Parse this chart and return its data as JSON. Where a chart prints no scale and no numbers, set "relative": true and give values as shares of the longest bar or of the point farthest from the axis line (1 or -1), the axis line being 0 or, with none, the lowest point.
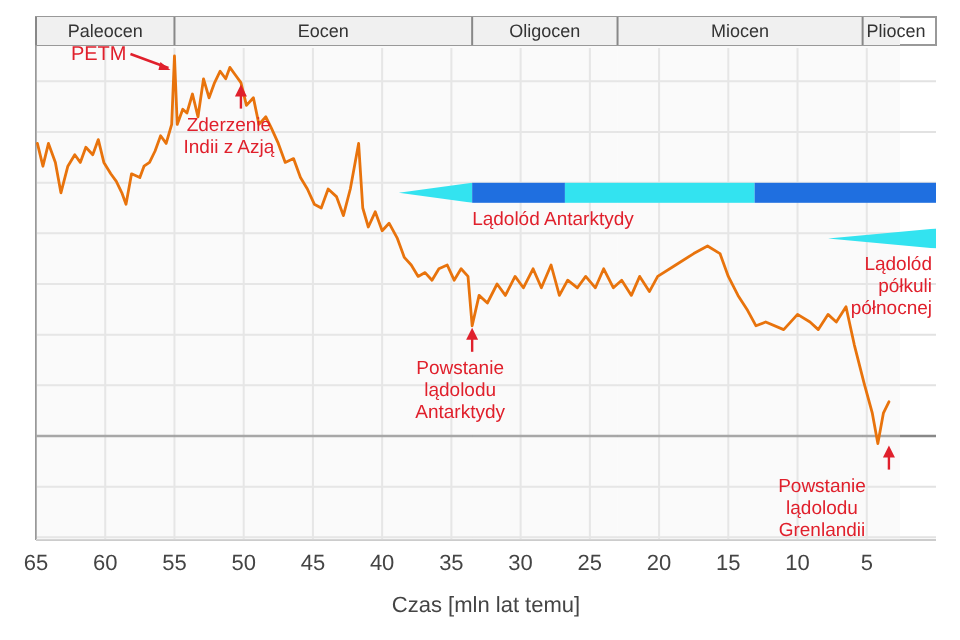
{
  "chart_data": {
    "type": "line",
    "relative": true,
    "xlabel": "Czas [mln lat temu]",
    "xlim": [
      65,
      0
    ],
    "xticks": [
      65,
      60,
      55,
      50,
      45,
      40,
      35,
      30,
      25,
      20,
      15,
      10,
      5
    ],
    "grid": true,
    "x": [
      64.9,
      64.5,
      64.1,
      63.6,
      63.2,
      62.7,
      62.2,
      61.8,
      61.4,
      60.9,
      60.5,
      60.1,
      59.6,
      59.2,
      58.8,
      58.5,
      58.1,
      57.5,
      57.2,
      56.8,
      56.4,
      56.0,
      55.6,
      55.2,
      55.0,
      54.8,
      54.4,
      54.1,
      53.7,
      53.3,
      52.9,
      52.5,
      52.1,
      51.7,
      51.3,
      51.0,
      50.6,
      50.2,
      49.8,
      49.3,
      48.9,
      48.4,
      48.0,
      47.5,
      47.0,
      46.4,
      45.9,
      45.4,
      44.9,
      44.4,
      43.9,
      43.3,
      42.8,
      42.3,
      41.7,
      41.4,
      41.0,
      40.5,
      40.0,
      39.5,
      38.9,
      38.4,
      37.9,
      37.4,
      36.9,
      36.4,
      35.9,
      35.3,
      34.8,
      34.3,
      33.8,
      33.5,
      33.0,
      32.4,
      31.7,
      31.1,
      30.4,
      29.8,
      29.1,
      28.5,
      27.8,
      27.2,
      26.6,
      25.9,
      25.3,
      24.6,
      24.0,
      23.3,
      22.7,
      22.0,
      21.4,
      20.7,
      20.1,
      18.8,
      17.5,
      16.5,
      15.6,
      15.0,
      14.3,
      13.6,
      13.0,
      12.3,
      11.0,
      10.0,
      9.1,
      8.5,
      7.8,
      7.2,
      6.5,
      5.9,
      5.2,
      4.6,
      4.2,
      3.8,
      3.4
    ],
    "series": [
      {
        "color": "#e8730c",
        "values": [
          0.77,
          0.71,
          0.77,
          0.72,
          0.64,
          0.71,
          0.74,
          0.72,
          0.76,
          0.74,
          0.78,
          0.72,
          0.69,
          0.67,
          0.64,
          0.61,
          0.69,
          0.68,
          0.71,
          0.72,
          0.75,
          0.79,
          0.77,
          0.82,
          1,
          0.82,
          0.86,
          0.85,
          0.9,
          0.84,
          0.94,
          0.89,
          0.93,
          0.96,
          0.94,
          0.97,
          0.95,
          0.93,
          0.87,
          0.89,
          0.82,
          0.84,
          0.81,
          0.77,
          0.72,
          0.73,
          0.68,
          0.65,
          0.61,
          0.6,
          0.65,
          0.63,
          0.58,
          0.65,
          0.77,
          0.6,
          0.55,
          0.59,
          0.54,
          0.56,
          0.52,
          0.47,
          0.45,
          0.42,
          0.43,
          0.41,
          0.44,
          0.45,
          0.41,
          0.44,
          0.42,
          0.29,
          0.37,
          0.35,
          0.4,
          0.37,
          0.42,
          0.39,
          0.44,
          0.39,
          0.45,
          0.37,
          0.41,
          0.39,
          0.42,
          0.39,
          0.44,
          0.39,
          0.41,
          0.37,
          0.42,
          0.38,
          0.42,
          0.45,
          0.48,
          0.5,
          0.48,
          0.42,
          0.37,
          0.33,
          0.29,
          0.3,
          0.28,
          0.32,
          0.3,
          0.28,
          0.32,
          0.3,
          0.34,
          0.24,
          0.14,
          0.06,
          -0.02,
          0.06,
          0.09
        ]
      }
    ],
    "bands": [
      {
        "axis": "x",
        "from": 65,
        "to": 55,
        "label": "Paleocen"
      },
      {
        "axis": "x",
        "from": 55,
        "to": 33.5,
        "label": "Eocen"
      },
      {
        "axis": "x",
        "from": 33.5,
        "to": 23,
        "label": "Oligocen"
      },
      {
        "axis": "x",
        "from": 23,
        "to": 5.3,
        "label": "Miocen"
      },
      {
        "axis": "x",
        "from": 5.3,
        "to": 2.6,
        "label": "Pliocen"
      },
      {
        "axis": "x",
        "from": 38.8,
        "to": 33.5,
        "label": "Lądolód Antarktydy",
        "color": "#33e3f0"
      },
      {
        "axis": "x",
        "from": 33.5,
        "to": 26.8,
        "label": null,
        "color": "#1f6fe0"
      },
      {
        "axis": "x",
        "from": 26.8,
        "to": 13.1,
        "label": null,
        "color": "#33e3f0"
      },
      {
        "axis": "x",
        "from": 13.1,
        "to": 0,
        "label": null,
        "color": "#1f6fe0"
      },
      {
        "axis": "x",
        "from": 7.8,
        "to": 0,
        "label": "Lądolód półkuli północnej",
        "color": "#33e3f0"
      }
    ],
    "annotations": [
      {
        "text": "PETM",
        "x": 55.0,
        "y": 1
      },
      {
        "text": "Zderzenie Indii z Azją",
        "x": 50.2,
        "y": 0.93
      },
      {
        "text": "Powstanie lądolodu Antarktydy",
        "x": 33.5,
        "y": 0.29
      },
      {
        "text": "Powstanie lądolodu Grenlandii",
        "x": 3.4,
        "y": -0.02
      }
    ]
  }
}
